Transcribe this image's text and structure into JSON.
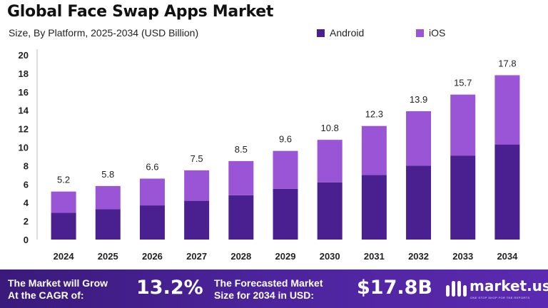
{
  "header": {
    "title": "Global Face Swap Apps Market",
    "subtitle": "Size, By Platform, 2025-2034 (USD Billion)"
  },
  "colors": {
    "android": "#4a1f8f",
    "ios": "#9a55d6",
    "footer_bg": "#4b239a"
  },
  "chart_data": {
    "type": "bar",
    "stacked": true,
    "title": "Global Face Swap Apps Market",
    "subtitle": "Size, By Platform, 2025-2034 (USD Billion)",
    "categories": [
      "2024",
      "2025",
      "2026",
      "2027",
      "2028",
      "2029",
      "2030",
      "2031",
      "2032",
      "2033",
      "2034"
    ],
    "series": [
      {
        "name": "Android",
        "values": [
          2.9,
          3.3,
          3.7,
          4.2,
          4.8,
          5.5,
          6.2,
          7.0,
          8.0,
          9.1,
          10.3
        ]
      },
      {
        "name": "iOS",
        "values": [
          2.3,
          2.5,
          2.9,
          3.3,
          3.7,
          4.1,
          4.6,
          5.3,
          5.9,
          6.6,
          7.5
        ]
      }
    ],
    "totals": [
      "5.2",
      "5.8",
      "6.6",
      "7.5",
      "8.5",
      "9.6",
      "10.8",
      "12.3",
      "13.9",
      "15.7",
      "17.8"
    ],
    "y_ticks": [
      "0",
      "2",
      "4",
      "6",
      "8",
      "10",
      "12",
      "14",
      "16",
      "18",
      "20"
    ],
    "ylim": [
      0,
      20
    ],
    "xlabel": "",
    "ylabel": "",
    "legend_position": "top-right",
    "grid": false
  },
  "footer": {
    "cagr_label_line1": "The Market will Grow",
    "cagr_label_line2": "At the CAGR of:",
    "cagr_value": "13.2%",
    "forecast_label_line1": "The Forecasted Market",
    "forecast_label_line2": "Size for 2034 in USD:",
    "forecast_value": "$17.8B",
    "brand_name": "market.us",
    "brand_tagline": "ONE STOP SHOP FOR THE REPORTS",
    "logo_icon": "market-us-logo-icon"
  }
}
